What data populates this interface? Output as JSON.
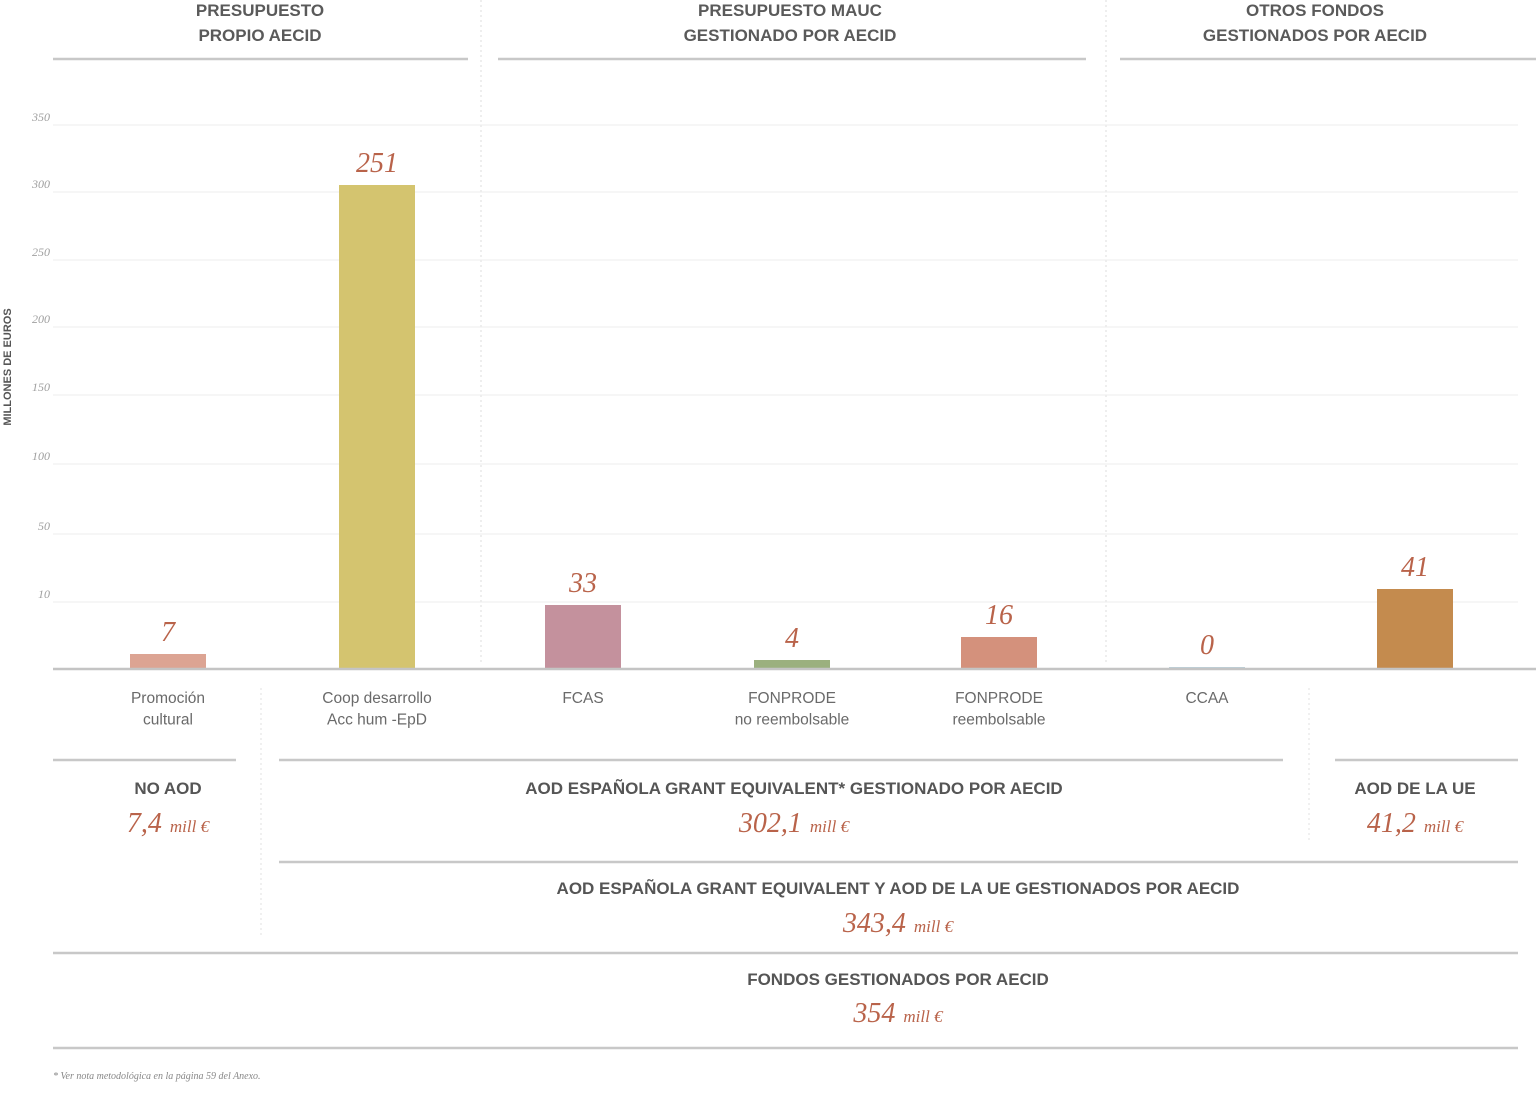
{
  "chart_data": {
    "type": "bar",
    "ylabel": "MILLONES DE EUROS",
    "yticks": [
      "350",
      "300",
      "250",
      "200",
      "150",
      "100",
      "50",
      "10"
    ],
    "groups": [
      {
        "title": [
          "PRESUPUESTO",
          "PROPIO AECID"
        ]
      },
      {
        "title": [
          "PRESUPUESTO MAUC",
          "GESTIONADO POR AECID"
        ]
      },
      {
        "title": [
          "OTROS FONDOS",
          "GESTIONADOS POR AECID"
        ]
      }
    ],
    "bars": [
      {
        "label": [
          "Promoción",
          "cultural"
        ],
        "value": 7,
        "display_value": "7",
        "color": "#dca493"
      },
      {
        "label": [
          "Coop desarrollo",
          "Acc hum -EpD"
        ],
        "value": 251,
        "display_value": "251",
        "color": "#d4c46f"
      },
      {
        "label": [
          "FCAS"
        ],
        "value": 33,
        "display_value": "33",
        "color": "#c4919d"
      },
      {
        "label": [
          "FONPRODE",
          "no reembolsable"
        ],
        "value": 4,
        "display_value": "4",
        "color": "#9bb07e"
      },
      {
        "label": [
          "FONPRODE",
          "reembolsable"
        ],
        "value": 16,
        "display_value": "16",
        "color": "#d4917c"
      },
      {
        "label": [
          "CCAA"
        ],
        "value": 0,
        "display_value": "0",
        "color": "#bcd0da"
      },
      {
        "label": [],
        "value": 41,
        "display_value": "41",
        "color": "#c48b4e"
      }
    ],
    "grid": true
  },
  "summaries": [
    {
      "title": "NO AOD",
      "value": "7,4",
      "unit": "mill €"
    },
    {
      "title": "AOD ESPAÑOLA GRANT EQUIVALENT* GESTIONADO POR AECID",
      "value": "302,1",
      "unit": "mill €"
    },
    {
      "title": "AOD DE LA UE",
      "value": "41,2",
      "unit": "mill €"
    },
    {
      "title": "AOD ESPAÑOLA GRANT EQUIVALENT Y AOD DE LA UE GESTIONADOS POR AECID",
      "value": "343,4",
      "unit": "mill €"
    },
    {
      "title": "FONDOS GESTIONADOS POR AECID",
      "value": "354",
      "unit": "mill €"
    }
  ],
  "footnote": "* Ver nota metodológica en la página 59 del Anexo."
}
